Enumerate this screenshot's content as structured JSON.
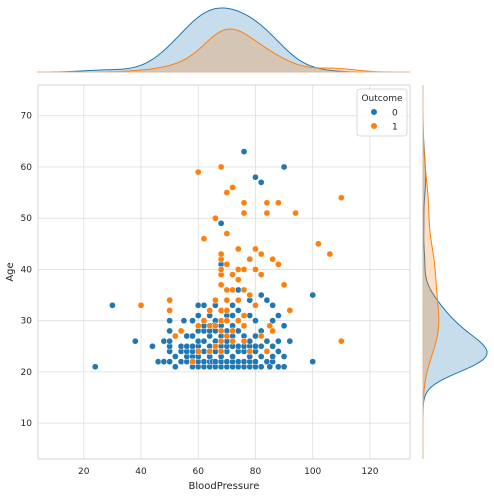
{
  "chart_data": {
    "type": "scatter",
    "subtype": "jointplot with marginal KDE",
    "xlabel": "BloodPressure",
    "ylabel": "Age",
    "xlim": [
      4,
      134
    ],
    "ylim": [
      3,
      76
    ],
    "xticks": [
      20,
      40,
      60,
      80,
      100,
      120
    ],
    "yticks": [
      10,
      20,
      30,
      40,
      50,
      60,
      70
    ],
    "grid": true,
    "legend": {
      "title": "Outcome",
      "placement": "top-right"
    },
    "series": [
      {
        "name": "0",
        "color": "#1f77b4",
        "points": [
          [
            24,
            21
          ],
          [
            30,
            33
          ],
          [
            38,
            26
          ],
          [
            44,
            25
          ],
          [
            46,
            22
          ],
          [
            48,
            22
          ],
          [
            48,
            26
          ],
          [
            50,
            22
          ],
          [
            50,
            24
          ],
          [
            50,
            25
          ],
          [
            50,
            26
          ],
          [
            50,
            28
          ],
          [
            50,
            30
          ],
          [
            52,
            21
          ],
          [
            52,
            23
          ],
          [
            54,
            22
          ],
          [
            54,
            24
          ],
          [
            54,
            25
          ],
          [
            55,
            30
          ],
          [
            56,
            22
          ],
          [
            56,
            23
          ],
          [
            56,
            24
          ],
          [
            56,
            25
          ],
          [
            56,
            27
          ],
          [
            58,
            21
          ],
          [
            58,
            22
          ],
          [
            58,
            23
          ],
          [
            58,
            24
          ],
          [
            58,
            25
          ],
          [
            58,
            27
          ],
          [
            58,
            30
          ],
          [
            60,
            21
          ],
          [
            60,
            22
          ],
          [
            60,
            23
          ],
          [
            60,
            24
          ],
          [
            60,
            25
          ],
          [
            60,
            26
          ],
          [
            60,
            28
          ],
          [
            60,
            31
          ],
          [
            60,
            33
          ],
          [
            62,
            21
          ],
          [
            62,
            22
          ],
          [
            62,
            24
          ],
          [
            62,
            26
          ],
          [
            62,
            28
          ],
          [
            62,
            29
          ],
          [
            62,
            33
          ],
          [
            64,
            21
          ],
          [
            64,
            22
          ],
          [
            64,
            23
          ],
          [
            64,
            24
          ],
          [
            64,
            25
          ],
          [
            64,
            27
          ],
          [
            64,
            28
          ],
          [
            64,
            31
          ],
          [
            65,
            22
          ],
          [
            65,
            29
          ],
          [
            66,
            21
          ],
          [
            66,
            22
          ],
          [
            66,
            24
          ],
          [
            66,
            25
          ],
          [
            66,
            26
          ],
          [
            66,
            28
          ],
          [
            66,
            30
          ],
          [
            66,
            33
          ],
          [
            68,
            21
          ],
          [
            68,
            22
          ],
          [
            68,
            23
          ],
          [
            68,
            25
          ],
          [
            68,
            27
          ],
          [
            68,
            29
          ],
          [
            68,
            41
          ],
          [
            68,
            49
          ],
          [
            70,
            21
          ],
          [
            70,
            22
          ],
          [
            70,
            24
          ],
          [
            70,
            25
          ],
          [
            70,
            26
          ],
          [
            70,
            28
          ],
          [
            70,
            31
          ],
          [
            70,
            55
          ],
          [
            72,
            21
          ],
          [
            72,
            22
          ],
          [
            72,
            23
          ],
          [
            72,
            25
          ],
          [
            72,
            27
          ],
          [
            72,
            29
          ],
          [
            72,
            31
          ],
          [
            72,
            33
          ],
          [
            74,
            21
          ],
          [
            74,
            22
          ],
          [
            74,
            24
          ],
          [
            74,
            25
          ],
          [
            74,
            28
          ],
          [
            74,
            30
          ],
          [
            74,
            32
          ],
          [
            74,
            36
          ],
          [
            76,
            21
          ],
          [
            76,
            22
          ],
          [
            76,
            24
          ],
          [
            76,
            25
          ],
          [
            76,
            27
          ],
          [
            76,
            29
          ],
          [
            76,
            63
          ],
          [
            78,
            21
          ],
          [
            78,
            22
          ],
          [
            78,
            23
          ],
          [
            78,
            25
          ],
          [
            78,
            26
          ],
          [
            78,
            31
          ],
          [
            78,
            34
          ],
          [
            78,
            42
          ],
          [
            80,
            21
          ],
          [
            80,
            22
          ],
          [
            80,
            24
          ],
          [
            80,
            25
          ],
          [
            80,
            27
          ],
          [
            80,
            30
          ],
          [
            80,
            58
          ],
          [
            82,
            21
          ],
          [
            82,
            23
          ],
          [
            82,
            25
          ],
          [
            82,
            28
          ],
          [
            82,
            35
          ],
          [
            82,
            57
          ],
          [
            84,
            22
          ],
          [
            84,
            24
          ],
          [
            84,
            26
          ],
          [
            84,
            34
          ],
          [
            85,
            21
          ],
          [
            86,
            22
          ],
          [
            86,
            23
          ],
          [
            86,
            25
          ],
          [
            86,
            30
          ],
          [
            86,
            33
          ],
          [
            88,
            21
          ],
          [
            88,
            24
          ],
          [
            88,
            26
          ],
          [
            88,
            31
          ],
          [
            90,
            21
          ],
          [
            90,
            23
          ],
          [
            90,
            29
          ],
          [
            90,
            60
          ],
          [
            92,
            26
          ],
          [
            100,
            22
          ],
          [
            100,
            35
          ]
        ]
      },
      {
        "name": "1",
        "color": "#ff7f0e",
        "points": [
          [
            40,
            33
          ],
          [
            50,
            32
          ],
          [
            50,
            34
          ],
          [
            52,
            27
          ],
          [
            54,
            28
          ],
          [
            58,
            22
          ],
          [
            60,
            24
          ],
          [
            60,
            29
          ],
          [
            60,
            59
          ],
          [
            62,
            30
          ],
          [
            62,
            46
          ],
          [
            64,
            24
          ],
          [
            64,
            29
          ],
          [
            64,
            32
          ],
          [
            66,
            25
          ],
          [
            66,
            29
          ],
          [
            66,
            34
          ],
          [
            66,
            50
          ],
          [
            68,
            24
          ],
          [
            68,
            26
          ],
          [
            68,
            28
          ],
          [
            68,
            30
          ],
          [
            68,
            32
          ],
          [
            68,
            37
          ],
          [
            68,
            39
          ],
          [
            68,
            40
          ],
          [
            68,
            42
          ],
          [
            68,
            43
          ],
          [
            68,
            60
          ],
          [
            70,
            27
          ],
          [
            70,
            30
          ],
          [
            70,
            32
          ],
          [
            70,
            34
          ],
          [
            70,
            36
          ],
          [
            70,
            41
          ],
          [
            70,
            47
          ],
          [
            70,
            55
          ],
          [
            72,
            26
          ],
          [
            72,
            28
          ],
          [
            72,
            36
          ],
          [
            72,
            39
          ],
          [
            72,
            56
          ],
          [
            74,
            30
          ],
          [
            74,
            34
          ],
          [
            74,
            38
          ],
          [
            74,
            40
          ],
          [
            74,
            44
          ],
          [
            76,
            26
          ],
          [
            76,
            29
          ],
          [
            76,
            31
          ],
          [
            76,
            36
          ],
          [
            76,
            40
          ],
          [
            76,
            51
          ],
          [
            76,
            53
          ],
          [
            78,
            24
          ],
          [
            78,
            35
          ],
          [
            78,
            42
          ],
          [
            80,
            33
          ],
          [
            80,
            40
          ],
          [
            80,
            44
          ],
          [
            82,
            27
          ],
          [
            82,
            39
          ],
          [
            82,
            43
          ],
          [
            84,
            24
          ],
          [
            84,
            51
          ],
          [
            84,
            53
          ],
          [
            85,
            29
          ],
          [
            86,
            28
          ],
          [
            86,
            42
          ],
          [
            88,
            41
          ],
          [
            88,
            53
          ],
          [
            90,
            37
          ],
          [
            92,
            32
          ],
          [
            94,
            51
          ],
          [
            102,
            45
          ],
          [
            106,
            43
          ],
          [
            110,
            26
          ],
          [
            110,
            54
          ]
        ]
      }
    ]
  },
  "legend": {
    "title": "Outcome",
    "items": [
      {
        "label": "0",
        "color": "#1f77b4"
      },
      {
        "label": "1",
        "color": "#ff7f0e"
      }
    ]
  }
}
